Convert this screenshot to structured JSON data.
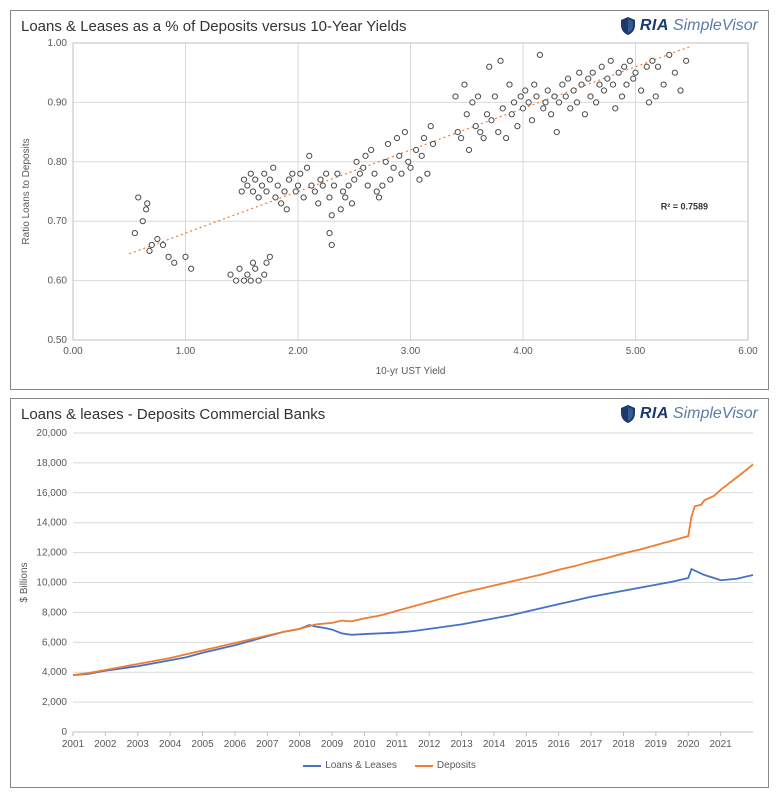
{
  "brand": {
    "ria": "RIA",
    "sv": "SimpleVisor",
    "shield_color": "#1a3a6e"
  },
  "scatter_chart": {
    "type": "scatter",
    "title": "Loans & Leases as a % of Deposits versus 10-Year Yields",
    "xlabel": "10-yr UST Yield",
    "ylabel": "Ratio Loans to Deposits",
    "xlim": [
      0.0,
      6.0
    ],
    "ylim": [
      0.5,
      1.0
    ],
    "xtick_step": 1.0,
    "ytick_step": 0.1,
    "x_decimals": 2,
    "y_decimals": 2,
    "marker_radius": 2.6,
    "marker_fill": "#ffffff",
    "marker_stroke": "#4a4a4a",
    "plot_bg": "#ffffff",
    "grid_color": "#d9d9d9",
    "border_color": "#bfbfbf",
    "trend": {
      "x1": 0.5,
      "y1": 0.645,
      "x2": 5.5,
      "y2": 0.995,
      "color": "#ed7d31",
      "width": 1.2
    },
    "r2_text": "R² = 0.7589",
    "points": [
      [
        0.55,
        0.68
      ],
      [
        0.58,
        0.74
      ],
      [
        0.62,
        0.7
      ],
      [
        0.65,
        0.72
      ],
      [
        0.66,
        0.73
      ],
      [
        0.68,
        0.65
      ],
      [
        0.7,
        0.66
      ],
      [
        0.75,
        0.67
      ],
      [
        0.8,
        0.66
      ],
      [
        0.85,
        0.64
      ],
      [
        0.9,
        0.63
      ],
      [
        1.0,
        0.64
      ],
      [
        1.05,
        0.62
      ],
      [
        1.4,
        0.61
      ],
      [
        1.45,
        0.6
      ],
      [
        1.48,
        0.62
      ],
      [
        1.52,
        0.6
      ],
      [
        1.55,
        0.61
      ],
      [
        1.58,
        0.6
      ],
      [
        1.6,
        0.63
      ],
      [
        1.62,
        0.62
      ],
      [
        1.65,
        0.6
      ],
      [
        1.7,
        0.61
      ],
      [
        1.72,
        0.63
      ],
      [
        1.75,
        0.64
      ],
      [
        1.5,
        0.75
      ],
      [
        1.52,
        0.77
      ],
      [
        1.55,
        0.76
      ],
      [
        1.58,
        0.78
      ],
      [
        1.6,
        0.75
      ],
      [
        1.62,
        0.77
      ],
      [
        1.65,
        0.74
      ],
      [
        1.68,
        0.76
      ],
      [
        1.7,
        0.78
      ],
      [
        1.72,
        0.75
      ],
      [
        1.75,
        0.77
      ],
      [
        1.78,
        0.79
      ],
      [
        1.8,
        0.74
      ],
      [
        1.82,
        0.76
      ],
      [
        1.85,
        0.73
      ],
      [
        1.88,
        0.75
      ],
      [
        1.9,
        0.72
      ],
      [
        1.92,
        0.77
      ],
      [
        1.95,
        0.78
      ],
      [
        1.98,
        0.75
      ],
      [
        2.0,
        0.76
      ],
      [
        2.02,
        0.78
      ],
      [
        2.05,
        0.74
      ],
      [
        2.08,
        0.79
      ],
      [
        2.1,
        0.81
      ],
      [
        2.12,
        0.76
      ],
      [
        2.15,
        0.75
      ],
      [
        2.18,
        0.73
      ],
      [
        2.2,
        0.77
      ],
      [
        2.22,
        0.76
      ],
      [
        2.25,
        0.78
      ],
      [
        2.28,
        0.74
      ],
      [
        2.3,
        0.71
      ],
      [
        2.28,
        0.68
      ],
      [
        2.3,
        0.66
      ],
      [
        2.32,
        0.76
      ],
      [
        2.35,
        0.78
      ],
      [
        2.38,
        0.72
      ],
      [
        2.4,
        0.75
      ],
      [
        2.42,
        0.74
      ],
      [
        2.45,
        0.76
      ],
      [
        2.48,
        0.73
      ],
      [
        2.5,
        0.77
      ],
      [
        2.52,
        0.8
      ],
      [
        2.55,
        0.78
      ],
      [
        2.58,
        0.79
      ],
      [
        2.6,
        0.81
      ],
      [
        2.62,
        0.76
      ],
      [
        2.65,
        0.82
      ],
      [
        2.68,
        0.78
      ],
      [
        2.7,
        0.75
      ],
      [
        2.72,
        0.74
      ],
      [
        2.75,
        0.76
      ],
      [
        2.78,
        0.8
      ],
      [
        2.8,
        0.83
      ],
      [
        2.82,
        0.77
      ],
      [
        2.85,
        0.79
      ],
      [
        2.88,
        0.84
      ],
      [
        2.9,
        0.81
      ],
      [
        2.92,
        0.78
      ],
      [
        2.95,
        0.85
      ],
      [
        2.98,
        0.8
      ],
      [
        3.0,
        0.79
      ],
      [
        3.05,
        0.82
      ],
      [
        3.08,
        0.77
      ],
      [
        3.1,
        0.81
      ],
      [
        3.12,
        0.84
      ],
      [
        3.15,
        0.78
      ],
      [
        3.18,
        0.86
      ],
      [
        3.2,
        0.83
      ],
      [
        3.4,
        0.91
      ],
      [
        3.42,
        0.85
      ],
      [
        3.45,
        0.84
      ],
      [
        3.48,
        0.93
      ],
      [
        3.5,
        0.88
      ],
      [
        3.52,
        0.82
      ],
      [
        3.55,
        0.9
      ],
      [
        3.58,
        0.86
      ],
      [
        3.6,
        0.91
      ],
      [
        3.62,
        0.85
      ],
      [
        3.65,
        0.84
      ],
      [
        3.68,
        0.88
      ],
      [
        3.7,
        0.96
      ],
      [
        3.72,
        0.87
      ],
      [
        3.75,
        0.91
      ],
      [
        3.78,
        0.85
      ],
      [
        3.8,
        0.97
      ],
      [
        3.82,
        0.89
      ],
      [
        3.85,
        0.84
      ],
      [
        3.88,
        0.93
      ],
      [
        3.9,
        0.88
      ],
      [
        3.92,
        0.9
      ],
      [
        3.95,
        0.86
      ],
      [
        3.98,
        0.91
      ],
      [
        4.0,
        0.89
      ],
      [
        4.02,
        0.92
      ],
      [
        4.05,
        0.9
      ],
      [
        4.08,
        0.87
      ],
      [
        4.1,
        0.93
      ],
      [
        4.12,
        0.91
      ],
      [
        4.15,
        0.98
      ],
      [
        4.18,
        0.89
      ],
      [
        4.2,
        0.9
      ],
      [
        4.22,
        0.92
      ],
      [
        4.25,
        0.88
      ],
      [
        4.28,
        0.91
      ],
      [
        4.3,
        0.85
      ],
      [
        4.32,
        0.9
      ],
      [
        4.35,
        0.93
      ],
      [
        4.38,
        0.91
      ],
      [
        4.4,
        0.94
      ],
      [
        4.42,
        0.89
      ],
      [
        4.45,
        0.92
      ],
      [
        4.48,
        0.9
      ],
      [
        4.5,
        0.95
      ],
      [
        4.52,
        0.93
      ],
      [
        4.55,
        0.88
      ],
      [
        4.58,
        0.94
      ],
      [
        4.6,
        0.91
      ],
      [
        4.62,
        0.95
      ],
      [
        4.65,
        0.9
      ],
      [
        4.68,
        0.93
      ],
      [
        4.7,
        0.96
      ],
      [
        4.72,
        0.92
      ],
      [
        4.75,
        0.94
      ],
      [
        4.78,
        0.97
      ],
      [
        4.8,
        0.93
      ],
      [
        4.82,
        0.89
      ],
      [
        4.85,
        0.95
      ],
      [
        4.88,
        0.91
      ],
      [
        4.9,
        0.96
      ],
      [
        4.92,
        0.93
      ],
      [
        4.95,
        0.97
      ],
      [
        4.98,
        0.94
      ],
      [
        5.0,
        0.95
      ],
      [
        5.05,
        0.92
      ],
      [
        5.1,
        0.96
      ],
      [
        5.12,
        0.9
      ],
      [
        5.15,
        0.97
      ],
      [
        5.18,
        0.91
      ],
      [
        5.2,
        0.96
      ],
      [
        5.25,
        0.93
      ],
      [
        5.3,
        0.98
      ],
      [
        5.35,
        0.95
      ],
      [
        5.4,
        0.92
      ],
      [
        5.45,
        0.97
      ]
    ]
  },
  "line_chart": {
    "type": "line",
    "title": "Loans & leases - Deposits  Commercial Banks",
    "ylabel": "$ Billions",
    "xlim": [
      2001,
      2022
    ],
    "ylim": [
      0,
      20000
    ],
    "ytick_step": 2000,
    "x_categories": [
      2001,
      2002,
      2003,
      2004,
      2005,
      2006,
      2007,
      2008,
      2009,
      2010,
      2011,
      2012,
      2013,
      2014,
      2015,
      2016,
      2017,
      2018,
      2019,
      2020,
      2021
    ],
    "plot_bg": "#ffffff",
    "grid_color": "#d9d9d9",
    "series": [
      {
        "name": "Loans & Leases",
        "color": "#4472c4",
        "data": [
          [
            2001,
            3800
          ],
          [
            2001.5,
            3900
          ],
          [
            2002,
            4100
          ],
          [
            2002.5,
            4250
          ],
          [
            2003,
            4400
          ],
          [
            2003.5,
            4600
          ],
          [
            2004,
            4800
          ],
          [
            2004.5,
            5000
          ],
          [
            2005,
            5300
          ],
          [
            2005.5,
            5550
          ],
          [
            2006,
            5800
          ],
          [
            2006.5,
            6100
          ],
          [
            2007,
            6400
          ],
          [
            2007.5,
            6700
          ],
          [
            2008,
            6900
          ],
          [
            2008.3,
            7150
          ],
          [
            2008.5,
            7050
          ],
          [
            2008.8,
            6950
          ],
          [
            2009,
            6850
          ],
          [
            2009.3,
            6600
          ],
          [
            2009.6,
            6500
          ],
          [
            2010,
            6550
          ],
          [
            2010.5,
            6600
          ],
          [
            2011,
            6650
          ],
          [
            2011.5,
            6750
          ],
          [
            2012,
            6900
          ],
          [
            2012.5,
            7050
          ],
          [
            2013,
            7200
          ],
          [
            2013.5,
            7400
          ],
          [
            2014,
            7600
          ],
          [
            2014.5,
            7800
          ],
          [
            2015,
            8050
          ],
          [
            2015.5,
            8300
          ],
          [
            2016,
            8550
          ],
          [
            2016.5,
            8800
          ],
          [
            2017,
            9050
          ],
          [
            2017.5,
            9250
          ],
          [
            2018,
            9450
          ],
          [
            2018.5,
            9650
          ],
          [
            2019,
            9850
          ],
          [
            2019.5,
            10050
          ],
          [
            2020,
            10300
          ],
          [
            2020.1,
            10900
          ],
          [
            2020.3,
            10700
          ],
          [
            2020.5,
            10500
          ],
          [
            2020.8,
            10300
          ],
          [
            2021,
            10150
          ],
          [
            2021.5,
            10250
          ],
          [
            2022,
            10500
          ]
        ]
      },
      {
        "name": "Deposits",
        "color": "#ed7d31",
        "data": [
          [
            2001,
            3800
          ],
          [
            2001.5,
            3950
          ],
          [
            2002,
            4150
          ],
          [
            2002.5,
            4350
          ],
          [
            2003,
            4550
          ],
          [
            2003.5,
            4750
          ],
          [
            2004,
            4950
          ],
          [
            2004.5,
            5200
          ],
          [
            2005,
            5450
          ],
          [
            2005.5,
            5700
          ],
          [
            2006,
            5950
          ],
          [
            2006.5,
            6200
          ],
          [
            2007,
            6450
          ],
          [
            2007.5,
            6700
          ],
          [
            2008,
            6900
          ],
          [
            2008.5,
            7200
          ],
          [
            2009,
            7300
          ],
          [
            2009.3,
            7450
          ],
          [
            2009.6,
            7400
          ],
          [
            2010,
            7600
          ],
          [
            2010.5,
            7800
          ],
          [
            2011,
            8100
          ],
          [
            2011.5,
            8400
          ],
          [
            2012,
            8700
          ],
          [
            2012.5,
            9000
          ],
          [
            2013,
            9300
          ],
          [
            2013.5,
            9550
          ],
          [
            2014,
            9800
          ],
          [
            2014.5,
            10050
          ],
          [
            2015,
            10300
          ],
          [
            2015.5,
            10550
          ],
          [
            2016,
            10850
          ],
          [
            2016.5,
            11100
          ],
          [
            2017,
            11400
          ],
          [
            2017.5,
            11650
          ],
          [
            2018,
            11950
          ],
          [
            2018.5,
            12200
          ],
          [
            2019,
            12500
          ],
          [
            2019.5,
            12800
          ],
          [
            2020,
            13100
          ],
          [
            2020.1,
            14400
          ],
          [
            2020.2,
            15100
          ],
          [
            2020.4,
            15200
          ],
          [
            2020.5,
            15500
          ],
          [
            2020.8,
            15800
          ],
          [
            2021,
            16200
          ],
          [
            2021.3,
            16700
          ],
          [
            2021.6,
            17200
          ],
          [
            2022,
            17900
          ]
        ]
      }
    ],
    "legend_labels": [
      "Loans & Leases",
      "Deposits"
    ]
  }
}
